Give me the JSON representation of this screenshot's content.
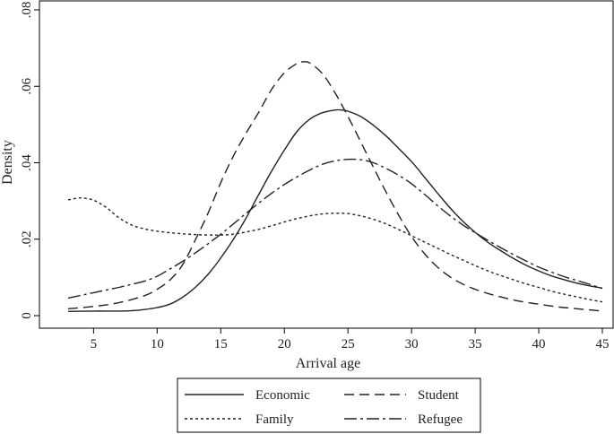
{
  "chart_data": {
    "type": "line",
    "xlabel": "Arrival age",
    "ylabel": "Density",
    "xlim": [
      3,
      45
    ],
    "ylim": [
      0,
      0.08
    ],
    "xticks": [
      5,
      10,
      15,
      20,
      25,
      30,
      35,
      40,
      45
    ],
    "xtick_labels": [
      "5",
      "10",
      "15",
      "20",
      "25",
      "30",
      "35",
      "40",
      "45"
    ],
    "yticks": [
      0,
      0.02,
      0.04,
      0.06,
      0.08
    ],
    "ytick_labels": [
      "0",
      ".02",
      ".04",
      ".06",
      ".08"
    ],
    "grid": false,
    "legend_position": "bottom",
    "series": [
      {
        "name": "Economic",
        "dash": "solid",
        "x": [
          3,
          5,
          7,
          8,
          9,
          10,
          11,
          12,
          13,
          14,
          15,
          16,
          17,
          18,
          19,
          20,
          21,
          22,
          23,
          24,
          24.5,
          25,
          26,
          27,
          28,
          29,
          30,
          31,
          32,
          33,
          34,
          35,
          36,
          37,
          38,
          39,
          40,
          41,
          42,
          43,
          44,
          45
        ],
        "y": [
          0.0011,
          0.0012,
          0.0012,
          0.0013,
          0.0016,
          0.0021,
          0.003,
          0.0048,
          0.0074,
          0.0108,
          0.0151,
          0.02,
          0.0256,
          0.0318,
          0.0378,
          0.0433,
          0.0482,
          0.0514,
          0.0531,
          0.0538,
          0.0538,
          0.0535,
          0.0521,
          0.0498,
          0.047,
          0.0437,
          0.0403,
          0.0363,
          0.0322,
          0.0283,
          0.0248,
          0.0218,
          0.0192,
          0.017,
          0.015,
          0.0132,
          0.0117,
          0.0104,
          0.0094,
          0.0085,
          0.0078,
          0.0072
        ]
      },
      {
        "name": "Student",
        "dash": "dashed",
        "x": [
          3,
          5,
          7,
          9,
          10,
          11,
          12,
          13,
          14,
          15,
          16,
          17,
          18,
          19,
          20,
          21,
          21.5,
          22,
          23,
          24,
          25,
          26,
          27,
          28,
          29,
          30,
          31,
          32,
          33,
          34,
          35,
          36,
          37,
          38,
          39,
          40,
          41,
          42,
          43,
          44,
          45
        ],
        "y": [
          0.0018,
          0.0024,
          0.0034,
          0.0052,
          0.0069,
          0.0093,
          0.0133,
          0.0198,
          0.0268,
          0.0348,
          0.0418,
          0.0478,
          0.0533,
          0.0592,
          0.0635,
          0.066,
          0.0664,
          0.0661,
          0.0633,
          0.0582,
          0.0521,
          0.0455,
          0.0388,
          0.0323,
          0.0262,
          0.0207,
          0.0163,
          0.0128,
          0.0102,
          0.0083,
          0.0069,
          0.0058,
          0.0049,
          0.0041,
          0.0035,
          0.003,
          0.0025,
          0.0021,
          0.0018,
          0.0015,
          0.0012
        ]
      },
      {
        "name": "Family",
        "dash": "dotted",
        "x": [
          3,
          4,
          5,
          6,
          7,
          8,
          9,
          10,
          11,
          12,
          13,
          14,
          15,
          16,
          17,
          18,
          19,
          20,
          21,
          22,
          23,
          24,
          25,
          26,
          27,
          28,
          29,
          30,
          31,
          32,
          33,
          34,
          35,
          36,
          37,
          38,
          39,
          40,
          41,
          42,
          43,
          44,
          45
        ],
        "y": [
          0.0303,
          0.0308,
          0.0302,
          0.0283,
          0.0256,
          0.0237,
          0.0227,
          0.0221,
          0.0217,
          0.0214,
          0.0212,
          0.0211,
          0.0211,
          0.0213,
          0.0219,
          0.0226,
          0.0235,
          0.0245,
          0.0254,
          0.0261,
          0.0266,
          0.0268,
          0.0267,
          0.0261,
          0.0252,
          0.024,
          0.0225,
          0.0209,
          0.0193,
          0.0177,
          0.0161,
          0.0146,
          0.0131,
          0.0117,
          0.0105,
          0.0094,
          0.0083,
          0.0074,
          0.0064,
          0.0056,
          0.0049,
          0.0042,
          0.0036
        ]
      },
      {
        "name": "Refugee",
        "dash": "dashdot",
        "x": [
          3,
          4,
          5,
          6,
          7,
          8,
          9,
          10,
          11,
          12,
          13,
          14,
          15,
          16,
          17,
          18,
          19,
          20,
          21,
          22,
          23,
          24,
          25,
          26,
          27,
          28,
          29,
          30,
          31,
          32,
          33,
          34,
          35,
          36,
          37,
          38,
          39,
          40,
          41,
          42,
          43,
          44,
          45
        ],
        "y": [
          0.0046,
          0.0053,
          0.006,
          0.0067,
          0.0074,
          0.0082,
          0.009,
          0.0103,
          0.0122,
          0.0142,
          0.0164,
          0.0188,
          0.0213,
          0.024,
          0.0268,
          0.0295,
          0.032,
          0.0343,
          0.0363,
          0.0381,
          0.0396,
          0.0405,
          0.0409,
          0.0408,
          0.04,
          0.0385,
          0.0367,
          0.0345,
          0.0318,
          0.0289,
          0.0262,
          0.0238,
          0.0217,
          0.0197,
          0.0178,
          0.016,
          0.0143,
          0.0127,
          0.0114,
          0.0102,
          0.0092,
          0.0082,
          0.0071
        ]
      }
    ]
  }
}
